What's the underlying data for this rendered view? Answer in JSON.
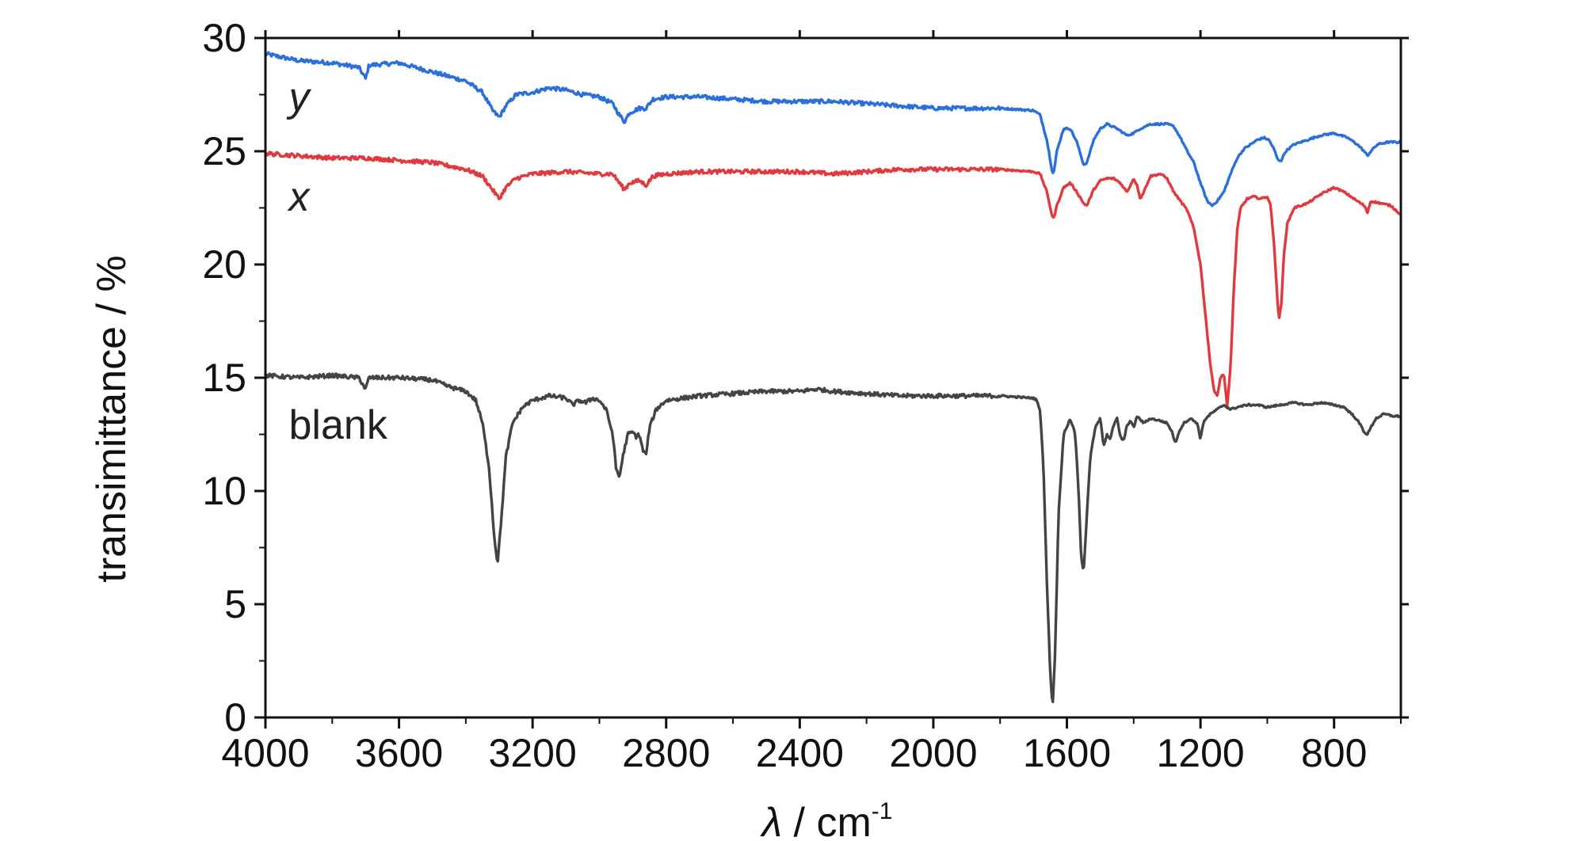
{
  "chart_data": {
    "type": "line",
    "xlabel": {
      "symbol": "λ",
      "text": " / cm",
      "superscript": "-1"
    },
    "ylabel": "transimittance / %",
    "xlim": [
      4000,
      600
    ],
    "ylim": [
      0,
      30
    ],
    "x_reversed": true,
    "x_ticks": [
      4000,
      3600,
      3200,
      2800,
      2400,
      2000,
      1600,
      1200,
      800
    ],
    "y_ticks": [
      0,
      5,
      10,
      15,
      20,
      25,
      30
    ],
    "grid": false,
    "series": [
      {
        "label": "y",
        "label_italic": true,
        "color": "#2a6fdb",
        "points": [
          [
            4000,
            29.3
          ],
          [
            3900,
            29.0
          ],
          [
            3800,
            28.9
          ],
          [
            3720,
            28.7
          ],
          [
            3700,
            28.2
          ],
          [
            3690,
            28.8
          ],
          [
            3600,
            28.9
          ],
          [
            3500,
            28.5
          ],
          [
            3400,
            28.1
          ],
          [
            3350,
            27.6
          ],
          [
            3320,
            26.8
          ],
          [
            3300,
            26.5
          ],
          [
            3280,
            27.0
          ],
          [
            3250,
            27.5
          ],
          [
            3200,
            27.6
          ],
          [
            3150,
            27.8
          ],
          [
            3100,
            27.7
          ],
          [
            3050,
            27.5
          ],
          [
            3000,
            27.4
          ],
          [
            2960,
            27.1
          ],
          [
            2940,
            26.6
          ],
          [
            2925,
            26.3
          ],
          [
            2910,
            26.7
          ],
          [
            2880,
            26.9
          ],
          [
            2860,
            26.9
          ],
          [
            2840,
            27.3
          ],
          [
            2800,
            27.4
          ],
          [
            2700,
            27.4
          ],
          [
            2600,
            27.3
          ],
          [
            2500,
            27.2
          ],
          [
            2400,
            27.2
          ],
          [
            2300,
            27.2
          ],
          [
            2200,
            27.1
          ],
          [
            2100,
            27.0
          ],
          [
            2000,
            26.9
          ],
          [
            1900,
            26.9
          ],
          [
            1800,
            26.9
          ],
          [
            1700,
            26.8
          ],
          [
            1680,
            26.6
          ],
          [
            1660,
            25.5
          ],
          [
            1645,
            24.2
          ],
          [
            1640,
            24.0
          ],
          [
            1630,
            25.0
          ],
          [
            1610,
            26.0
          ],
          [
            1590,
            26.0
          ],
          [
            1570,
            25.4
          ],
          [
            1550,
            24.4
          ],
          [
            1540,
            24.5
          ],
          [
            1520,
            25.5
          ],
          [
            1500,
            26.0
          ],
          [
            1480,
            26.2
          ],
          [
            1450,
            26.0
          ],
          [
            1420,
            25.7
          ],
          [
            1400,
            25.8
          ],
          [
            1380,
            26.0
          ],
          [
            1350,
            26.2
          ],
          [
            1300,
            26.2
          ],
          [
            1280,
            26.1
          ],
          [
            1260,
            25.6
          ],
          [
            1240,
            25.0
          ],
          [
            1220,
            24.5
          ],
          [
            1200,
            23.6
          ],
          [
            1180,
            22.8
          ],
          [
            1165,
            22.6
          ],
          [
            1150,
            22.8
          ],
          [
            1130,
            23.2
          ],
          [
            1110,
            24.0
          ],
          [
            1090,
            24.7
          ],
          [
            1070,
            25.1
          ],
          [
            1050,
            25.3
          ],
          [
            1030,
            25.5
          ],
          [
            1010,
            25.6
          ],
          [
            995,
            25.5
          ],
          [
            980,
            25.1
          ],
          [
            968,
            24.6
          ],
          [
            958,
            24.6
          ],
          [
            945,
            25.0
          ],
          [
            920,
            25.3
          ],
          [
            880,
            25.5
          ],
          [
            840,
            25.7
          ],
          [
            800,
            25.8
          ],
          [
            760,
            25.6
          ],
          [
            730,
            25.3
          ],
          [
            710,
            25.0
          ],
          [
            700,
            24.8
          ],
          [
            690,
            25.0
          ],
          [
            670,
            25.3
          ],
          [
            640,
            25.4
          ],
          [
            600,
            25.4
          ]
        ]
      },
      {
        "label": "x",
        "label_italic": true,
        "color": "#e0393e",
        "points": [
          [
            4000,
            24.9
          ],
          [
            3900,
            24.8
          ],
          [
            3800,
            24.7
          ],
          [
            3700,
            24.7
          ],
          [
            3600,
            24.6
          ],
          [
            3500,
            24.5
          ],
          [
            3400,
            24.2
          ],
          [
            3350,
            23.9
          ],
          [
            3320,
            23.3
          ],
          [
            3300,
            22.9
          ],
          [
            3280,
            23.4
          ],
          [
            3250,
            23.8
          ],
          [
            3200,
            24.0
          ],
          [
            3100,
            24.1
          ],
          [
            3000,
            24.0
          ],
          [
            2960,
            24.0
          ],
          [
            2940,
            23.6
          ],
          [
            2925,
            23.3
          ],
          [
            2910,
            23.6
          ],
          [
            2880,
            23.7
          ],
          [
            2860,
            23.5
          ],
          [
            2840,
            23.9
          ],
          [
            2800,
            24.0
          ],
          [
            2700,
            24.1
          ],
          [
            2600,
            24.1
          ],
          [
            2500,
            24.1
          ],
          [
            2400,
            24.1
          ],
          [
            2300,
            24.0
          ],
          [
            2200,
            24.1
          ],
          [
            2100,
            24.2
          ],
          [
            2000,
            24.2
          ],
          [
            1900,
            24.2
          ],
          [
            1800,
            24.2
          ],
          [
            1700,
            24.1
          ],
          [
            1680,
            24.0
          ],
          [
            1660,
            23.2
          ],
          [
            1645,
            22.2
          ],
          [
            1640,
            22.0
          ],
          [
            1630,
            22.6
          ],
          [
            1610,
            23.4
          ],
          [
            1590,
            23.6
          ],
          [
            1570,
            23.2
          ],
          [
            1550,
            22.7
          ],
          [
            1540,
            22.6
          ],
          [
            1520,
            23.3
          ],
          [
            1500,
            23.7
          ],
          [
            1480,
            23.8
          ],
          [
            1460,
            23.8
          ],
          [
            1440,
            23.6
          ],
          [
            1420,
            23.2
          ],
          [
            1410,
            23.5
          ],
          [
            1400,
            23.8
          ],
          [
            1390,
            23.5
          ],
          [
            1380,
            22.9
          ],
          [
            1370,
            23.2
          ],
          [
            1350,
            23.9
          ],
          [
            1320,
            24.0
          ],
          [
            1300,
            23.8
          ],
          [
            1280,
            23.2
          ],
          [
            1260,
            22.8
          ],
          [
            1240,
            22.4
          ],
          [
            1220,
            21.6
          ],
          [
            1200,
            20.0
          ],
          [
            1180,
            17.0
          ],
          [
            1170,
            15.5
          ],
          [
            1160,
            14.5
          ],
          [
            1150,
            14.2
          ],
          [
            1140,
            15.0
          ],
          [
            1130,
            15.2
          ],
          [
            1120,
            13.7
          ],
          [
            1110,
            15.5
          ],
          [
            1100,
            19.0
          ],
          [
            1090,
            21.5
          ],
          [
            1080,
            22.5
          ],
          [
            1060,
            22.9
          ],
          [
            1040,
            23.0
          ],
          [
            1020,
            22.9
          ],
          [
            1000,
            23.0
          ],
          [
            990,
            22.6
          ],
          [
            980,
            21.0
          ],
          [
            970,
            18.5
          ],
          [
            965,
            17.6
          ],
          [
            958,
            18.2
          ],
          [
            950,
            20.5
          ],
          [
            940,
            21.8
          ],
          [
            920,
            22.5
          ],
          [
            880,
            22.7
          ],
          [
            840,
            23.1
          ],
          [
            800,
            23.4
          ],
          [
            770,
            23.2
          ],
          [
            740,
            22.9
          ],
          [
            710,
            22.6
          ],
          [
            700,
            22.3
          ],
          [
            690,
            22.8
          ],
          [
            660,
            22.7
          ],
          [
            630,
            22.6
          ],
          [
            600,
            22.2
          ]
        ]
      },
      {
        "label": "blank",
        "label_italic": false,
        "color": "#444444",
        "points": [
          [
            4000,
            15.1
          ],
          [
            3900,
            15.0
          ],
          [
            3800,
            15.1
          ],
          [
            3720,
            15.0
          ],
          [
            3700,
            14.5
          ],
          [
            3690,
            15.0
          ],
          [
            3600,
            15.0
          ],
          [
            3500,
            14.9
          ],
          [
            3450,
            14.6
          ],
          [
            3400,
            14.4
          ],
          [
            3370,
            14.0
          ],
          [
            3350,
            13.0
          ],
          [
            3330,
            11.0
          ],
          [
            3315,
            8.0
          ],
          [
            3305,
            6.8
          ],
          [
            3295,
            8.5
          ],
          [
            3280,
            11.5
          ],
          [
            3260,
            13.0
          ],
          [
            3230,
            13.7
          ],
          [
            3200,
            14.0
          ],
          [
            3150,
            14.2
          ],
          [
            3100,
            14.1
          ],
          [
            3080,
            13.8
          ],
          [
            3060,
            14.0
          ],
          [
            3040,
            13.9
          ],
          [
            3020,
            14.1
          ],
          [
            3000,
            14.0
          ],
          [
            2980,
            13.6
          ],
          [
            2960,
            12.5
          ],
          [
            2950,
            11.0
          ],
          [
            2940,
            10.6
          ],
          [
            2930,
            11.5
          ],
          [
            2915,
            12.5
          ],
          [
            2900,
            12.6
          ],
          [
            2890,
            12.4
          ],
          [
            2880,
            12.5
          ],
          [
            2870,
            11.8
          ],
          [
            2860,
            11.6
          ],
          [
            2850,
            12.8
          ],
          [
            2830,
            13.6
          ],
          [
            2800,
            14.0
          ],
          [
            2700,
            14.2
          ],
          [
            2600,
            14.3
          ],
          [
            2500,
            14.4
          ],
          [
            2400,
            14.4
          ],
          [
            2350,
            14.5
          ],
          [
            2300,
            14.4
          ],
          [
            2200,
            14.3
          ],
          [
            2100,
            14.2
          ],
          [
            2000,
            14.2
          ],
          [
            1900,
            14.2
          ],
          [
            1800,
            14.2
          ],
          [
            1700,
            14.1
          ],
          [
            1690,
            14.0
          ],
          [
            1680,
            13.5
          ],
          [
            1670,
            11.0
          ],
          [
            1660,
            6.0
          ],
          [
            1650,
            2.0
          ],
          [
            1643,
            0.4
          ],
          [
            1635,
            3.0
          ],
          [
            1625,
            9.0
          ],
          [
            1610,
            12.5
          ],
          [
            1590,
            13.2
          ],
          [
            1575,
            12.5
          ],
          [
            1565,
            10.0
          ],
          [
            1557,
            7.0
          ],
          [
            1550,
            6.4
          ],
          [
            1542,
            8.5
          ],
          [
            1530,
            11.5
          ],
          [
            1515,
            12.8
          ],
          [
            1500,
            13.2
          ],
          [
            1490,
            12.0
          ],
          [
            1480,
            12.5
          ],
          [
            1470,
            12.3
          ],
          [
            1460,
            12.9
          ],
          [
            1450,
            13.2
          ],
          [
            1440,
            12.4
          ],
          [
            1430,
            12.2
          ],
          [
            1420,
            12.9
          ],
          [
            1410,
            13.1
          ],
          [
            1400,
            12.8
          ],
          [
            1390,
            13.3
          ],
          [
            1370,
            13.0
          ],
          [
            1350,
            13.2
          ],
          [
            1320,
            13.1
          ],
          [
            1300,
            13.0
          ],
          [
            1285,
            12.6
          ],
          [
            1275,
            12.1
          ],
          [
            1265,
            12.6
          ],
          [
            1250,
            13.0
          ],
          [
            1230,
            13.2
          ],
          [
            1210,
            13.0
          ],
          [
            1200,
            12.3
          ],
          [
            1190,
            13.1
          ],
          [
            1170,
            13.4
          ],
          [
            1150,
            13.6
          ],
          [
            1130,
            13.8
          ],
          [
            1110,
            13.6
          ],
          [
            1090,
            13.7
          ],
          [
            1060,
            13.8
          ],
          [
            1030,
            13.8
          ],
          [
            1000,
            13.7
          ],
          [
            960,
            13.8
          ],
          [
            920,
            13.9
          ],
          [
            880,
            13.8
          ],
          [
            840,
            13.9
          ],
          [
            800,
            13.8
          ],
          [
            770,
            13.7
          ],
          [
            740,
            13.3
          ],
          [
            720,
            12.9
          ],
          [
            710,
            12.6
          ],
          [
            700,
            12.5
          ],
          [
            690,
            12.8
          ],
          [
            675,
            13.2
          ],
          [
            650,
            13.4
          ],
          [
            620,
            13.3
          ],
          [
            600,
            13.3
          ]
        ]
      }
    ]
  }
}
